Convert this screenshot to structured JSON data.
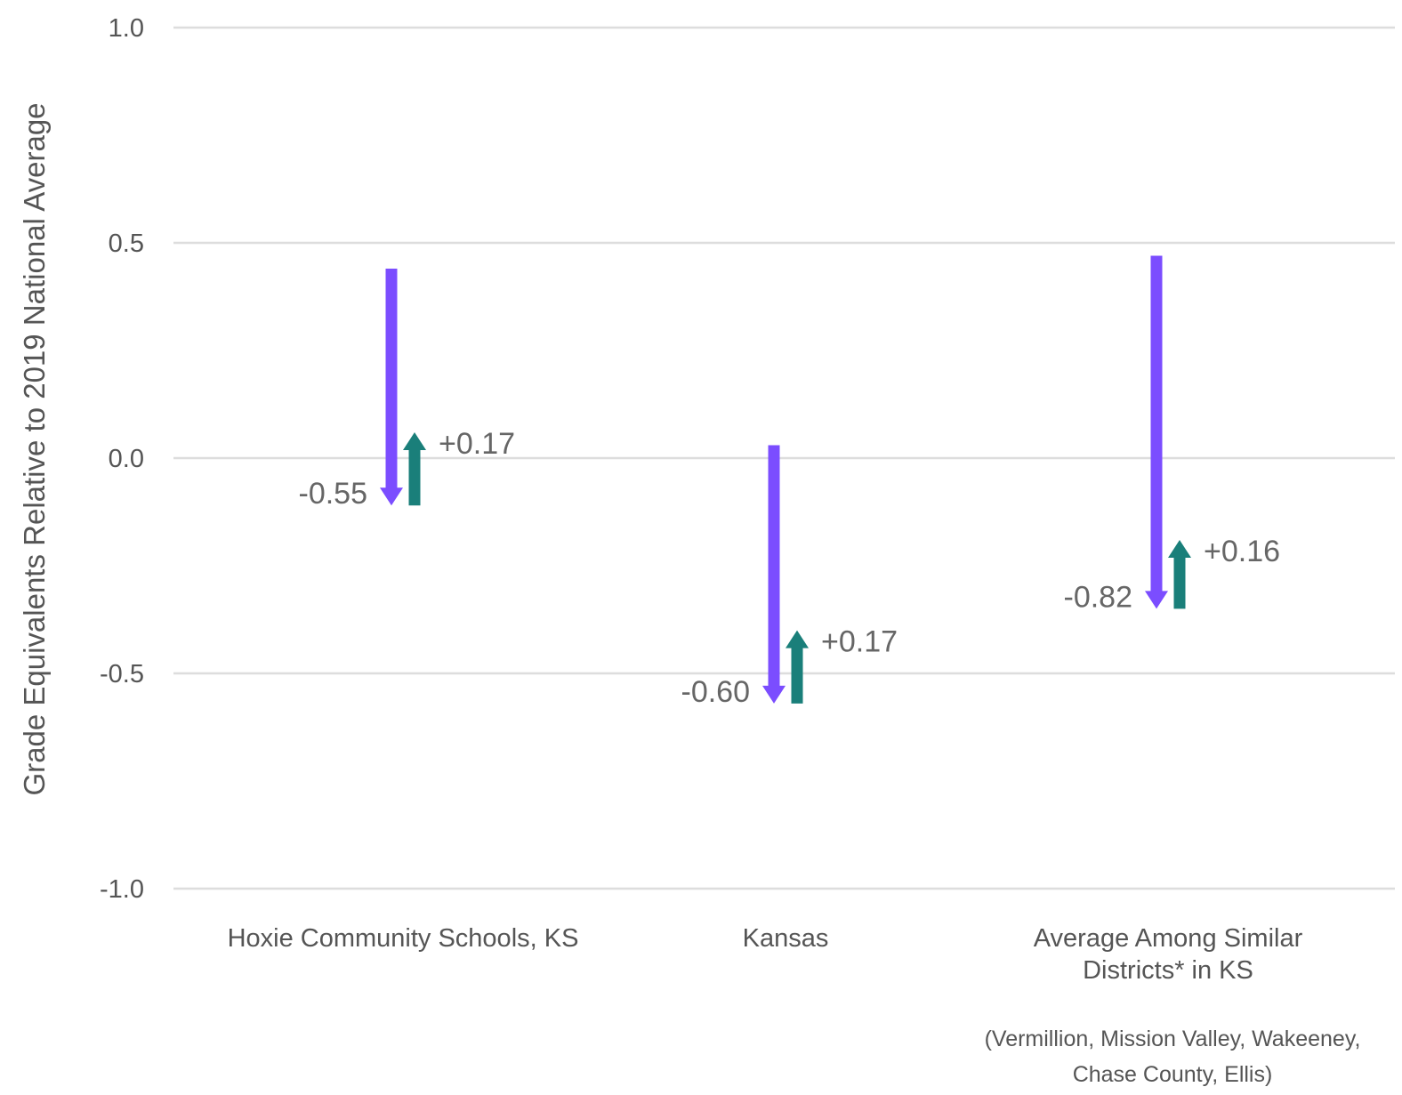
{
  "chart_data": {
    "type": "arrow",
    "ylabel": "Grade Equivalents Relative to 2019 National Average",
    "ylim": [
      -1.0,
      1.0
    ],
    "yticks": [
      1.0,
      0.5,
      0.0,
      -0.5,
      -1.0
    ],
    "ytick_labels": [
      "1.0",
      "0.5",
      "0.0",
      "-0.5",
      "-1.0"
    ],
    "grid": true,
    "categories": [
      {
        "label_lines": [
          "Hoxie Community Schools, KS"
        ],
        "note_lines": [],
        "decline": {
          "from": 0.44,
          "to": -0.11,
          "label": "-0.55"
        },
        "recovery": {
          "from": -0.11,
          "to": 0.06,
          "label": "+0.17"
        }
      },
      {
        "label_lines": [
          "Kansas"
        ],
        "note_lines": [],
        "decline": {
          "from": 0.03,
          "to": -0.57,
          "label": "-0.60"
        },
        "recovery": {
          "from": -0.57,
          "to": -0.4,
          "label": "+0.17"
        }
      },
      {
        "label_lines": [
          "Average Among Similar",
          "Districts* in KS"
        ],
        "note_lines": [
          "(Vermillion, Mission Valley, Wakeeney,",
          "Chase County, Ellis)"
        ],
        "decline": {
          "from": 0.47,
          "to": -0.35,
          "label": "-0.82"
        },
        "recovery": {
          "from": -0.35,
          "to": -0.19,
          "label": "+0.16"
        }
      }
    ],
    "colors": {
      "decline": "#7b4dff",
      "recovery": "#1a7f7a",
      "grid": "#dddddd",
      "text": "#555555"
    }
  }
}
